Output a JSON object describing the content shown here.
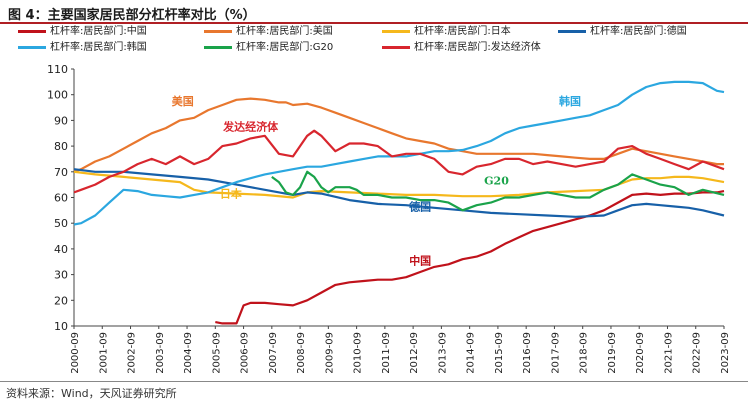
{
  "title": "图 4：主要国家居民部分杠杆率对比（%）",
  "source": "资料来源：Wind，天风证券研究所",
  "chart_data": {
    "type": "line",
    "ylim": [
      10,
      110
    ],
    "yticks": [
      10,
      20,
      30,
      40,
      50,
      60,
      70,
      80,
      90,
      100,
      110
    ],
    "xticks": [
      "2000-09",
      "2001-09",
      "2002-09",
      "2003-09",
      "2004-09",
      "2005-09",
      "2006-09",
      "2007-09",
      "2008-09",
      "2009-09",
      "2010-09",
      "2011-09",
      "2012-09",
      "2013-09",
      "2014-09",
      "2015-09",
      "2016-09",
      "2017-09",
      "2018-09",
      "2019-09",
      "2020-09",
      "2021-09",
      "2022-09",
      "2023-09"
    ],
    "xrange": [
      2000.75,
      2023.75
    ],
    "legend": [
      "杠杆率:居民部门:中国",
      "杠杆率:居民部门:美国",
      "杠杆率:居民部门:日本",
      "杠杆率:居民部门:德国",
      "杠杆率:居民部门:韩国",
      "杠杆率:居民部门:G20",
      "杠杆率:居民部门:发达经济体"
    ],
    "annotations": [
      {
        "text": "美国",
        "color": "#e8772e",
        "x": 2004.6,
        "y": 96
      },
      {
        "text": "发达经济体",
        "color": "#d8262e",
        "x": 2007.0,
        "y": 86
      },
      {
        "text": "韩国",
        "color": "#2ba7e0",
        "x": 2018.3,
        "y": 96
      },
      {
        "text": "日本",
        "color": "#f5b81c",
        "x": 2006.3,
        "y": 60
      },
      {
        "text": "G20",
        "color": "#1aa34a",
        "x": 2015.7,
        "y": 65
      },
      {
        "text": "德国",
        "color": "#1760a8",
        "x": 2013.0,
        "y": 55
      },
      {
        "text": "中国",
        "color": "#c0121b",
        "x": 2013.0,
        "y": 34
      }
    ],
    "series": [
      {
        "name": "杠杆率:居民部门:中国",
        "color": "#c0121b",
        "x": [
          2005.75,
          2006.0,
          2006.25,
          2006.5,
          2006.75,
          2007.0,
          2007.5,
          2008.0,
          2008.5,
          2009.0,
          2009.5,
          2010.0,
          2010.5,
          2011.0,
          2011.5,
          2012.0,
          2012.5,
          2013.0,
          2013.5,
          2014.0,
          2014.5,
          2015.0,
          2015.5,
          2016.0,
          2016.5,
          2017.0,
          2017.5,
          2018.0,
          2018.5,
          2019.0,
          2019.5,
          2020.0,
          2020.5,
          2021.0,
          2021.5,
          2022.0,
          2022.5,
          2023.0,
          2023.5,
          2023.75
        ],
        "y": [
          11.5,
          11,
          11,
          11,
          18,
          19,
          19,
          18.5,
          18,
          20,
          23,
          26,
          27,
          27.5,
          28,
          28,
          29,
          31,
          33,
          34,
          36,
          37,
          39,
          42,
          44.5,
          47,
          48.5,
          50,
          51.5,
          53,
          55,
          58,
          61,
          61.5,
          61,
          61.5,
          61.5,
          62,
          62,
          62.5
        ]
      },
      {
        "name": "杠杆率:居民部门:美国",
        "color": "#e8772e",
        "x": [
          2000.75,
          2001.0,
          2001.5,
          2002.0,
          2002.5,
          2003.0,
          2003.5,
          2004.0,
          2004.5,
          2005.0,
          2005.5,
          2006.0,
          2006.5,
          2007.0,
          2007.5,
          2008.0,
          2008.25,
          2008.5,
          2009.0,
          2009.5,
          2010.0,
          2010.5,
          2011.0,
          2011.5,
          2012.0,
          2012.5,
          2013.0,
          2013.5,
          2014.0,
          2014.5,
          2015.0,
          2015.5,
          2016.0,
          2016.5,
          2017.0,
          2017.5,
          2018.0,
          2018.5,
          2019.0,
          2019.5,
          2020.0,
          2020.5,
          2021.0,
          2021.5,
          2022.0,
          2022.5,
          2023.0,
          2023.5,
          2023.75
        ],
        "y": [
          70,
          71,
          74,
          76,
          79,
          82,
          85,
          87,
          90,
          91,
          94,
          96,
          98,
          98.5,
          98,
          97,
          97,
          96,
          96.5,
          95,
          93,
          91,
          89,
          87,
          85,
          83,
          82,
          81,
          79,
          78,
          77,
          77,
          77,
          77,
          77,
          76.5,
          76,
          75.5,
          75,
          75,
          77,
          79,
          78,
          77,
          76,
          75,
          74,
          73,
          73
        ]
      },
      {
        "name": "杠杆率:居民部门:日本",
        "color": "#f5b81c",
        "x": [
          2000.75,
          2001.5,
          2002.5,
          2003.5,
          2004.5,
          2005.0,
          2005.5,
          2006.5,
          2007.5,
          2008.5,
          2009.0,
          2009.5,
          2010.5,
          2011.5,
          2012.5,
          2013.5,
          2014.5,
          2015.5,
          2016.5,
          2017.5,
          2018.5,
          2019.5,
          2020.0,
          2020.5,
          2021.0,
          2021.5,
          2022.0,
          2022.5,
          2023.0,
          2023.75
        ],
        "y": [
          70,
          69,
          68,
          67,
          66,
          63,
          62,
          61.5,
          61,
          60,
          62,
          62.5,
          62,
          61.5,
          61,
          61,
          60.5,
          60.5,
          61,
          62,
          62.5,
          63,
          65,
          67,
          67.5,
          67.5,
          68,
          68,
          67.5,
          66
        ]
      },
      {
        "name": "杠杆率:居民部门:德国",
        "color": "#1760a8",
        "x": [
          2000.75,
          2001.5,
          2002.5,
          2003.5,
          2004.5,
          2005.5,
          2006.5,
          2007.5,
          2008.5,
          2009.0,
          2009.5,
          2010.5,
          2011.5,
          2012.5,
          2013.5,
          2014.5,
          2015.5,
          2016.5,
          2017.5,
          2018.5,
          2019.5,
          2020.0,
          2020.5,
          2021.0,
          2021.5,
          2022.0,
          2022.5,
          2023.0,
          2023.75
        ],
        "y": [
          71,
          70,
          70,
          69,
          68,
          67,
          65,
          63,
          61,
          62,
          61.5,
          59,
          57.5,
          57,
          56,
          55,
          54,
          53.5,
          53,
          52.5,
          53,
          55,
          57,
          57.5,
          57,
          56.5,
          56,
          55,
          53
        ]
      },
      {
        "name": "杠杆率:居民部门:韩国",
        "color": "#2ba7e0",
        "x": [
          2000.75,
          2001.0,
          2001.5,
          2002.0,
          2002.5,
          2003.0,
          2003.5,
          2004.0,
          2004.5,
          2005.0,
          2005.5,
          2006.0,
          2006.5,
          2007.0,
          2007.5,
          2008.0,
          2008.5,
          2009.0,
          2009.5,
          2010.0,
          2010.5,
          2011.0,
          2011.5,
          2012.0,
          2012.5,
          2013.0,
          2013.5,
          2014.0,
          2014.5,
          2015.0,
          2015.5,
          2016.0,
          2016.5,
          2017.0,
          2017.5,
          2018.0,
          2018.5,
          2019.0,
          2019.5,
          2020.0,
          2020.5,
          2021.0,
          2021.5,
          2022.0,
          2022.5,
          2023.0,
          2023.5,
          2023.75
        ],
        "y": [
          49.5,
          50,
          53,
          58,
          63,
          62.5,
          61,
          60.5,
          60,
          61,
          62,
          64,
          66,
          67.5,
          69,
          70,
          71,
          72,
          72,
          73,
          74,
          75,
          76,
          76,
          76,
          77,
          78,
          78,
          78.5,
          80,
          82,
          85,
          87,
          88,
          89,
          90,
          91,
          92,
          94,
          96,
          100,
          103,
          104.5,
          105,
          105,
          104.5,
          101.5,
          101
        ]
      },
      {
        "name": "杠杆率:居民部门:G20",
        "color": "#1aa34a",
        "x": [
          2007.75,
          2008.0,
          2008.25,
          2008.5,
          2008.75,
          2009.0,
          2009.25,
          2009.5,
          2009.75,
          2010.0,
          2010.5,
          2010.75,
          2011.0,
          2011.5,
          2012.0,
          2012.5,
          2013.0,
          2013.5,
          2014.0,
          2014.5,
          2015.0,
          2015.5,
          2016.0,
          2016.5,
          2017.0,
          2017.5,
          2018.0,
          2018.5,
          2019.0,
          2019.5,
          2020.0,
          2020.5,
          2021.0,
          2021.5,
          2022.0,
          2022.5,
          2023.0,
          2023.75
        ],
        "y": [
          68,
          66,
          62,
          61,
          64,
          70,
          68,
          64,
          62,
          64,
          64,
          63,
          61,
          61,
          60,
          60,
          59,
          59,
          58,
          55,
          57,
          58,
          60,
          60,
          61,
          62,
          61,
          60,
          60,
          63,
          65,
          69,
          67,
          65,
          64,
          61,
          63,
          61
        ]
      },
      {
        "name": "杠杆率:居民部门:发达经济体",
        "color": "#d8262e",
        "x": [
          2000.75,
          2001.0,
          2001.5,
          2002.0,
          2002.5,
          2003.0,
          2003.5,
          2004.0,
          2004.5,
          2005.0,
          2005.5,
          2006.0,
          2006.5,
          2007.0,
          2007.5,
          2008.0,
          2008.5,
          2009.0,
          2009.25,
          2009.5,
          2010.0,
          2010.5,
          2011.0,
          2011.5,
          2012.0,
          2012.5,
          2013.0,
          2013.5,
          2014.0,
          2014.5,
          2015.0,
          2015.5,
          2016.0,
          2016.5,
          2017.0,
          2017.5,
          2018.0,
          2018.5,
          2019.0,
          2019.5,
          2020.0,
          2020.5,
          2021.0,
          2021.5,
          2022.0,
          2022.5,
          2023.0,
          2023.75
        ],
        "y": [
          62,
          63,
          65,
          68,
          70,
          73,
          75,
          73,
          76,
          73,
          75,
          80,
          81,
          83,
          84,
          77,
          76,
          84,
          86,
          84,
          78,
          81,
          81,
          80,
          76,
          77,
          77,
          75,
          70,
          69,
          72,
          73,
          75,
          75,
          73,
          74,
          73,
          72,
          73,
          74,
          79,
          80,
          77,
          75,
          73,
          71,
          74,
          71
        ]
      }
    ]
  }
}
